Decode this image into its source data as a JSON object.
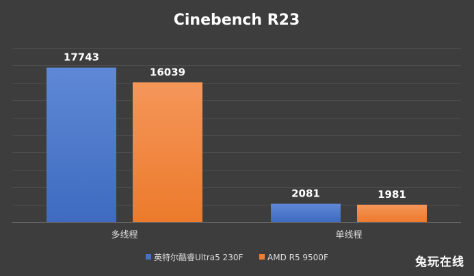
{
  "chart_data": {
    "type": "bar",
    "title": "Cinebench R23",
    "categories": [
      "多线程",
      "单线程"
    ],
    "series": [
      {
        "name": "英特尔酷睿Ultra5 230F",
        "values": [
          17743,
          2081
        ],
        "color": "#4472c4"
      },
      {
        "name": "AMD R5 9500F",
        "values": [
          16039,
          1981
        ],
        "color": "#ed7d31"
      }
    ],
    "ylim": [
      0,
      20000
    ],
    "grid": true,
    "legend_position": "bottom"
  },
  "watermark": "兔玩在线"
}
